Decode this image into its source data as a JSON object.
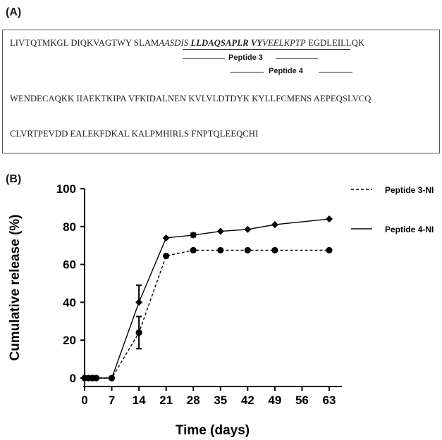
{
  "panel_a": {
    "label": "(A)",
    "line1": {
      "plain_start": "LIVTQTMKGL DIQKVAGTWY SLAM",
      "italic_1": "AASDIS ",
      "bold_italic": "LLDAQSAPLR VY",
      "italic_2": "VEELKPTP",
      "plain_end": " EGDLEILLQK"
    },
    "line2": "WENDECAQKK IIAEKTKIPA VFKIDALNEN KVLVLDTDYK KYLLFCMENS AEPEQSLVCQ",
    "line3": "CLVRTPEVDD EALEKFDKAL KALPMHIRLS FNPTQLEEQCHI",
    "peptide3_label": "Peptide 3",
    "peptide4_label": "Peptide 4"
  },
  "panel_b": {
    "label": "(B)"
  },
  "chart_data": {
    "type": "line",
    "xlabel": "Time (days)",
    "ylabel": "Cumulative release (%)",
    "xlim": [
      0,
      63
    ],
    "ylim": [
      0,
      100
    ],
    "x_ticks": [
      0,
      7,
      14,
      21,
      28,
      35,
      42,
      49,
      56,
      63
    ],
    "y_ticks": [
      0,
      20,
      40,
      60,
      80,
      100
    ],
    "grid": false,
    "legend_position": "top-right",
    "series": [
      {
        "name": "Peptide 3-NI",
        "style": "dashed",
        "marker": "circle",
        "color": "#000000",
        "x": [
          0,
          1,
          2,
          3,
          7,
          14,
          21,
          28,
          35,
          42,
          49,
          63
        ],
        "y": [
          0,
          0,
          0,
          0,
          0,
          24,
          64.5,
          67.5,
          67.5,
          67.5,
          67.5,
          67.5
        ],
        "error_bars": {
          "x": [
            14
          ],
          "minus": [
            8.5
          ],
          "plus": [
            8.5
          ]
        }
      },
      {
        "name": "Peptide 4-NI",
        "style": "solid",
        "marker": "diamond",
        "color": "#000000",
        "x": [
          0,
          1,
          2,
          3,
          7,
          14,
          21,
          28,
          35,
          42,
          49,
          63
        ],
        "y": [
          0,
          0,
          0,
          0,
          0,
          40,
          74,
          75.5,
          77.5,
          78.5,
          81,
          84
        ],
        "error_bars": {
          "x": [
            14,
            28
          ],
          "minus": [
            0,
            1
          ],
          "plus": [
            9,
            1
          ]
        }
      }
    ]
  }
}
